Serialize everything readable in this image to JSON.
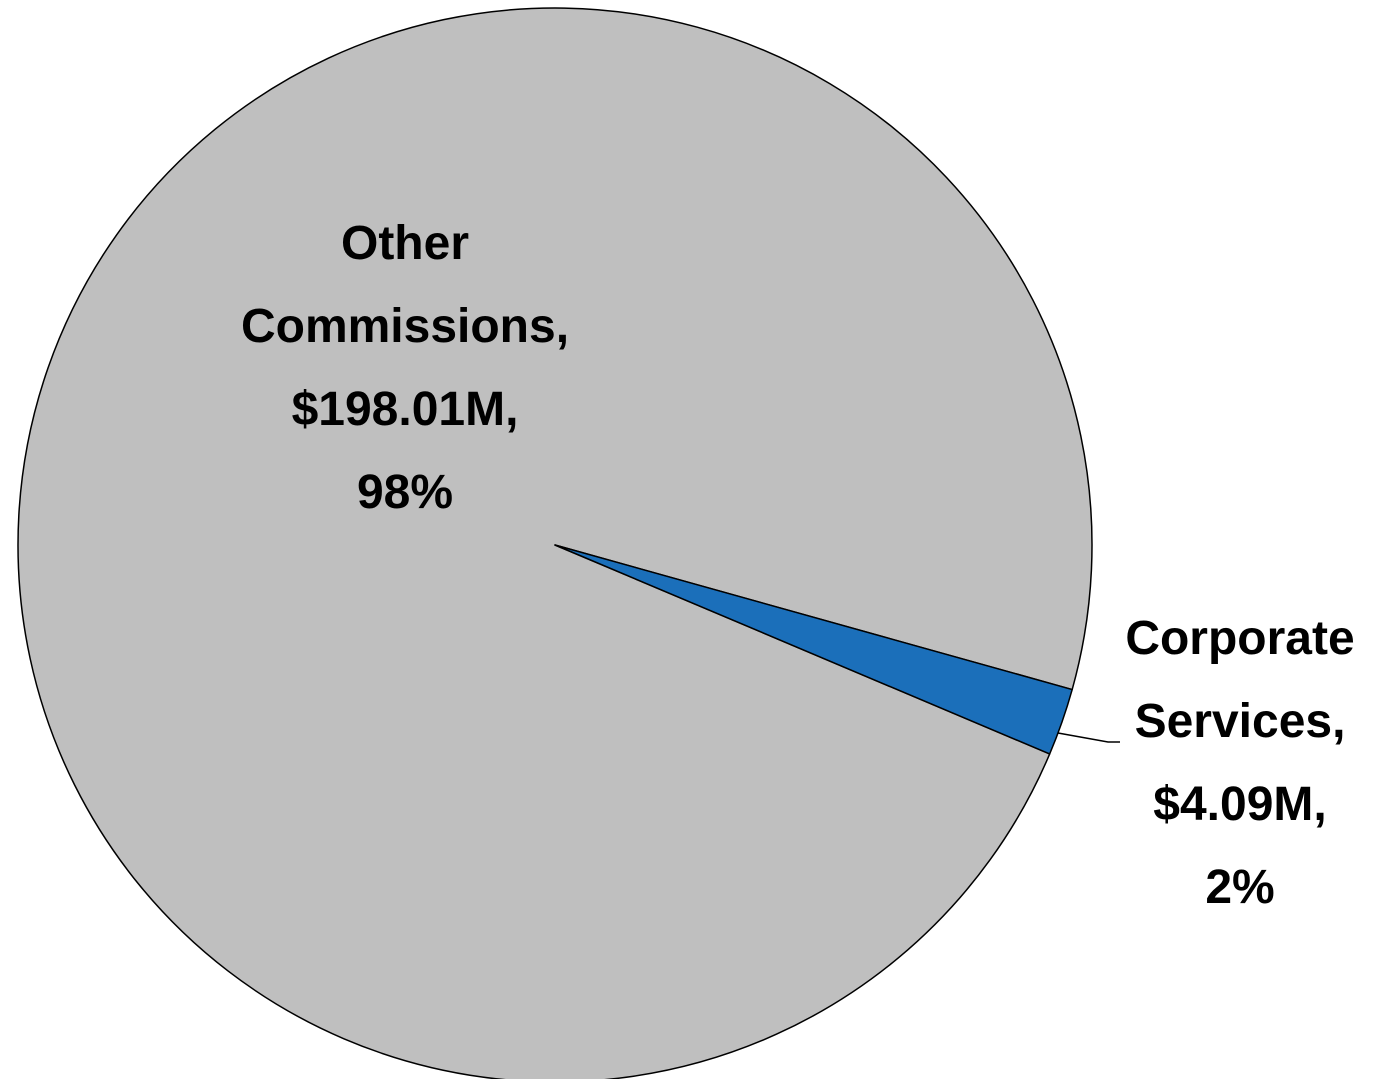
{
  "chart_data": {
    "type": "pie",
    "categories": [
      "Other Commissions,",
      "Corporate Services,"
    ],
    "values": [
      198.01,
      4.09
    ],
    "value_labels": [
      "$198.01M,",
      "$4.09M,"
    ],
    "percentages": [
      98,
      2
    ],
    "percentage_labels": [
      "98%",
      "2%"
    ],
    "colors": [
      "#bfbfbf",
      "#1b6fba"
    ]
  }
}
